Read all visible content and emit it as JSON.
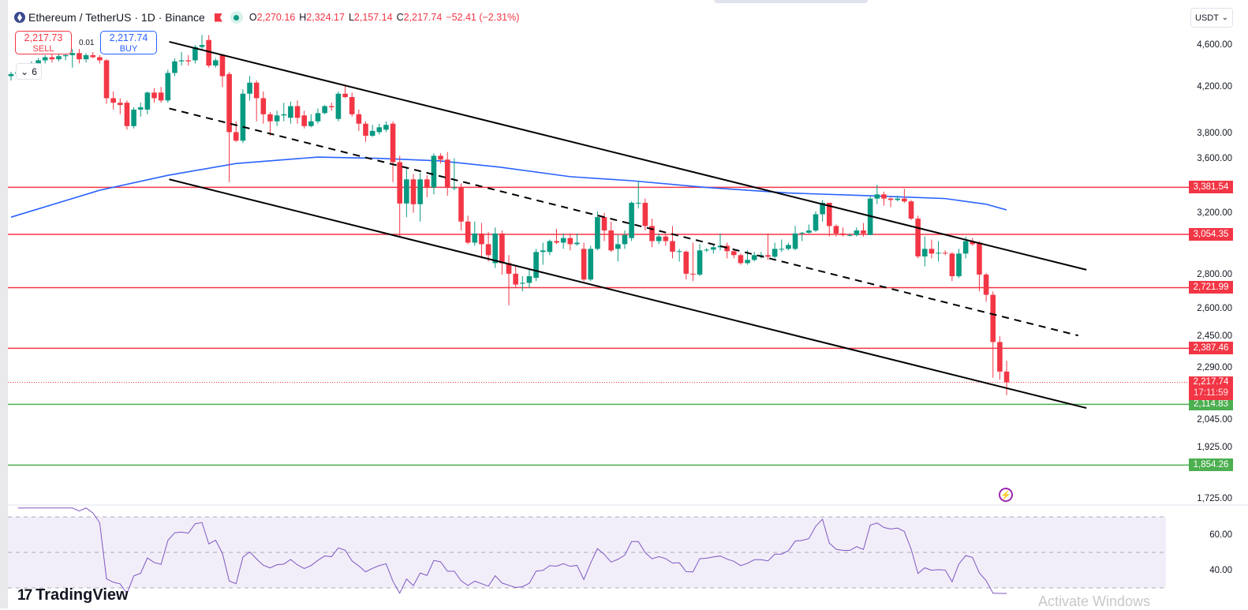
{
  "header": {
    "title": "Ethereum / TetherUS · 1D · Binance",
    "open_label": "O",
    "open": "2,270.16",
    "high_label": "H",
    "high": "2,324.17",
    "low_label": "L",
    "low": "2,157.14",
    "close_label": "C",
    "close": "2,217.74",
    "change": "−52.41 (−2.31%)"
  },
  "trade": {
    "sell_price": "2,217.73",
    "sell_label": "SELL",
    "buy_price": "2,217.74",
    "buy_label": "BUY",
    "spread": "0.01",
    "indicators_count": "6"
  },
  "currency_button": "USDT",
  "countdown": "17:11:59",
  "watermark": "Activate Windows",
  "logo_text": "TradingView",
  "colors": {
    "up": "#089981",
    "down": "#f23645",
    "ma": "#2962ff",
    "rsi": "#7e57c2",
    "support": "#4caf50",
    "resistance": "#f23645"
  },
  "icons": [
    "ethereum-logo-icon",
    "red-flag-icon",
    "market-open-dot-icon",
    "chevron-down-icon",
    "lightning-icon"
  ],
  "chart_data": {
    "type": "candlestick",
    "symbol": "ETHUSDT",
    "interval": "1D",
    "scale": "log",
    "ylim": [
      1700,
      4750
    ],
    "yticks": [
      "4,600.00",
      "4,200.00",
      "3,800.00",
      "3,600.00",
      "3,200.00",
      "2,800.00",
      "2,600.00",
      "2,450.00",
      "2,290.00",
      "2,045.00",
      "1,925.00",
      "1,725.00"
    ],
    "ytick_values": [
      4600,
      4200,
      3800,
      3600,
      3200,
      2800,
      2600,
      2450,
      2290,
      2045,
      1925,
      1725
    ],
    "current_price": {
      "value": 2217.74,
      "label": "2,217.74"
    },
    "levels": [
      {
        "value": 3381.54,
        "label": "3,381.54",
        "color": "#f23645"
      },
      {
        "value": 3054.35,
        "label": "3,054.35",
        "color": "#f23645"
      },
      {
        "value": 2721.99,
        "label": "2,721.99",
        "color": "#f23645"
      },
      {
        "value": 2387.46,
        "label": "2,387.46",
        "color": "#f23645"
      },
      {
        "value": 2114.83,
        "label": "2,114.83",
        "color": "#4caf50"
      },
      {
        "value": 1854.26,
        "label": "1,854.26",
        "color": "#4caf50"
      }
    ],
    "candles_ohlc": [
      [
        4300,
        4340,
        4260,
        4320
      ],
      [
        4320,
        4360,
        4290,
        4340
      ],
      [
        4330,
        4380,
        4300,
        4350
      ],
      [
        4350,
        4440,
        4330,
        4420
      ],
      [
        4420,
        4470,
        4390,
        4450
      ],
      [
        4450,
        4500,
        4420,
        4480
      ],
      [
        4480,
        4520,
        4430,
        4460
      ],
      [
        4460,
        4510,
        4440,
        4490
      ],
      [
        4490,
        4550,
        4450,
        4500
      ],
      [
        4500,
        4560,
        4380,
        4520
      ],
      [
        4520,
        4560,
        4420,
        4460
      ],
      [
        4460,
        4520,
        4430,
        4500
      ],
      [
        4500,
        4530,
        4470,
        4480
      ],
      [
        4480,
        4500,
        4420,
        4450
      ],
      [
        4450,
        4460,
        4050,
        4100
      ],
      [
        4100,
        4160,
        4000,
        4060
      ],
      [
        4060,
        4100,
        3960,
        4040
      ],
      [
        4060,
        4080,
        3830,
        3860
      ],
      [
        3860,
        4020,
        3840,
        4000
      ],
      [
        4000,
        4060,
        3940,
        4020
      ],
      [
        4000,
        4160,
        3960,
        4150
      ],
      [
        4150,
        4190,
        4060,
        4100
      ],
      [
        4150,
        4200,
        4060,
        4080
      ],
      [
        4080,
        4360,
        4060,
        4330
      ],
      [
        4330,
        4470,
        4300,
        4440
      ],
      [
        4440,
        4530,
        4400,
        4450
      ],
      [
        4450,
        4500,
        4400,
        4440
      ],
      [
        4450,
        4600,
        4420,
        4580
      ],
      [
        4580,
        4700,
        4560,
        4600
      ],
      [
        4650,
        4700,
        4380,
        4400
      ],
      [
        4400,
        4470,
        4380,
        4450
      ],
      [
        4500,
        4510,
        4200,
        4300
      ],
      [
        4320,
        4340,
        3420,
        3810
      ],
      [
        3810,
        3900,
        3730,
        3740
      ],
      [
        3740,
        4180,
        3720,
        4140
      ],
      [
        4140,
        4300,
        4080,
        4240
      ],
      [
        4240,
        4260,
        3900,
        4100
      ],
      [
        4100,
        4160,
        3880,
        3960
      ],
      [
        3960,
        3980,
        3780,
        3900
      ],
      [
        3900,
        3990,
        3860,
        3950
      ],
      [
        3950,
        4060,
        3900,
        3960
      ],
      [
        3930,
        4070,
        3880,
        4030
      ],
      [
        4030,
        4080,
        3880,
        3930
      ],
      [
        3950,
        3990,
        3840,
        3860
      ],
      [
        3860,
        3960,
        3850,
        3900
      ],
      [
        3900,
        4010,
        3880,
        3970
      ],
      [
        3970,
        4040,
        3960,
        4030
      ],
      [
        4030,
        4060,
        3990,
        4020
      ],
      [
        3920,
        4160,
        3900,
        4140
      ],
      [
        4140,
        4210,
        4100,
        4110
      ],
      [
        4110,
        4150,
        3940,
        3960
      ],
      [
        3960,
        4000,
        3820,
        3880
      ],
      [
        3880,
        3900,
        3730,
        3780
      ],
      [
        3780,
        3870,
        3770,
        3820
      ],
      [
        3810,
        3880,
        3790,
        3850
      ],
      [
        3830,
        3900,
        3810,
        3870
      ],
      [
        3880,
        3900,
        3420,
        3570
      ],
      [
        3570,
        3620,
        3040,
        3265
      ],
      [
        3265,
        3520,
        3170,
        3440
      ],
      [
        3440,
        3480,
        3200,
        3260
      ],
      [
        3260,
        3490,
        3140,
        3440
      ],
      [
        3440,
        3470,
        3310,
        3380
      ],
      [
        3380,
        3640,
        3330,
        3620
      ],
      [
        3620,
        3640,
        3560,
        3590
      ],
      [
        3590,
        3650,
        3320,
        3380
      ],
      [
        3380,
        3600,
        3360,
        3380
      ],
      [
        3380,
        3410,
        3080,
        3140
      ],
      [
        3140,
        3180,
        2990,
        3000
      ],
      [
        3000,
        3140,
        2980,
        3060
      ],
      [
        3060,
        3130,
        2900,
        2990
      ],
      [
        2990,
        3070,
        2880,
        2920
      ],
      [
        2870,
        3100,
        2840,
        3060
      ],
      [
        3060,
        3080,
        2800,
        2870
      ],
      [
        2870,
        2920,
        2620,
        2805
      ],
      [
        2805,
        2860,
        2720,
        2740
      ],
      [
        2745,
        2790,
        2700,
        2750
      ],
      [
        2750,
        2830,
        2720,
        2790
      ],
      [
        2780,
        2960,
        2760,
        2940
      ],
      [
        2940,
        3000,
        2860,
        2950
      ],
      [
        2940,
        3020,
        2920,
        3010
      ],
      [
        3010,
        3090,
        2990,
        3000
      ],
      [
        3000,
        3060,
        2960,
        3030
      ],
      [
        3030,
        3060,
        2950,
        2990
      ],
      [
        2990,
        3060,
        2980,
        3000
      ],
      [
        2960,
        3000,
        2760,
        2770
      ],
      [
        2770,
        2980,
        2760,
        2960
      ],
      [
        2960,
        3210,
        2950,
        3170
      ],
      [
        3170,
        3200,
        3010,
        3080
      ],
      [
        3080,
        3140,
        2940,
        2950
      ],
      [
        2960,
        3050,
        2880,
        2990
      ],
      [
        2990,
        3080,
        2960,
        3050
      ],
      [
        3030,
        3280,
        3010,
        3270
      ],
      [
        3270,
        3430,
        3230,
        3270
      ],
      [
        3270,
        3300,
        3080,
        3110
      ],
      [
        3110,
        3160,
        2970,
        3010
      ],
      [
        3010,
        3060,
        2990,
        3040
      ],
      [
        3040,
        3050,
        2980,
        3010
      ],
      [
        3010,
        3110,
        2900,
        2942
      ],
      [
        2942,
        2960,
        2880,
        2945
      ],
      [
        2942,
        2950,
        2770,
        2805
      ],
      [
        2805,
        3000,
        2760,
        2800
      ],
      [
        2800,
        2990,
        2790,
        2950
      ],
      [
        2950,
        2965,
        2940,
        2955
      ],
      [
        2955,
        2990,
        2930,
        2970
      ],
      [
        2970,
        3060,
        2950,
        2980
      ],
      [
        2980,
        3000,
        2900,
        2945
      ],
      [
        2945,
        2960,
        2900,
        2920
      ],
      [
        2920,
        2930,
        2860,
        2870
      ],
      [
        2870,
        2950,
        2860,
        2890
      ],
      [
        2890,
        2940,
        2880,
        2920
      ],
      [
        2915,
        2940,
        2900,
        2920
      ],
      [
        2920,
        3060,
        2890,
        2910
      ],
      [
        2910,
        3000,
        2900,
        2960
      ],
      [
        2960,
        3020,
        2940,
        2960
      ],
      [
        2960,
        3000,
        2950,
        2985
      ],
      [
        2960,
        3110,
        2950,
        3060
      ],
      [
        3060,
        3070,
        3010,
        3065
      ],
      [
        3065,
        3120,
        3060,
        3080
      ],
      [
        3080,
        3210,
        3070,
        3190
      ],
      [
        3190,
        3290,
        3140,
        3270
      ],
      [
        3270,
        3270,
        3040,
        3110
      ],
      [
        3110,
        3120,
        3040,
        3060
      ],
      [
        3060,
        3100,
        3040,
        3050
      ],
      [
        3050,
        3060,
        3040,
        3050
      ],
      [
        3050,
        3100,
        3040,
        3080
      ],
      [
        3080,
        3130,
        3040,
        3060
      ],
      [
        3050,
        3320,
        3050,
        3300
      ],
      [
        3300,
        3400,
        3260,
        3330
      ],
      [
        3330,
        3350,
        3250,
        3300
      ],
      [
        3300,
        3310,
        3240,
        3290
      ],
      [
        3290,
        3320,
        3280,
        3300
      ],
      [
        3300,
        3370,
        3270,
        3280
      ],
      [
        3280,
        3290,
        3150,
        3160
      ],
      [
        3160,
        3180,
        2900,
        2912
      ],
      [
        2912,
        3040,
        2850,
        2960
      ],
      [
        2960,
        3020,
        2900,
        2930
      ],
      [
        2930,
        3010,
        2880,
        2935
      ],
      [
        2935,
        2950,
        2920,
        2930
      ],
      [
        2930,
        2940,
        2760,
        2790
      ],
      [
        2790,
        2960,
        2780,
        2930
      ],
      [
        2930,
        3040,
        2900,
        3010
      ],
      [
        3010,
        3030,
        2980,
        2990
      ],
      [
        3000,
        3010,
        2700,
        2800
      ],
      [
        2800,
        2810,
        2640,
        2680
      ],
      [
        2680,
        2700,
        2240,
        2420
      ],
      [
        2420,
        2450,
        2230,
        2270
      ],
      [
        2270.16,
        2324.17,
        2157.14,
        2217.74
      ]
    ],
    "moving_average": [
      [
        0,
        3170
      ],
      [
        13,
        3360
      ],
      [
        23,
        3470
      ],
      [
        33,
        3560
      ],
      [
        45,
        3610
      ],
      [
        54,
        3600
      ],
      [
        63,
        3580
      ],
      [
        72,
        3530
      ],
      [
        82,
        3460
      ],
      [
        91,
        3430
      ],
      [
        102,
        3380
      ],
      [
        114,
        3340
      ],
      [
        126,
        3320
      ],
      [
        137,
        3300
      ],
      [
        143,
        3260
      ],
      [
        146,
        3220
      ]
    ],
    "trendlines": [
      {
        "style": "solid",
        "points": [
          [
            23.2,
            4632
          ],
          [
            157.7,
            2829
          ]
        ]
      },
      {
        "style": "dashed",
        "points": [
          [
            23.2,
            4010
          ],
          [
            156.5,
            2454
          ]
        ]
      },
      {
        "style": "solid",
        "points": [
          [
            23.2,
            3440
          ],
          [
            157.7,
            2098
          ]
        ]
      }
    ],
    "rsi": {
      "period": 14,
      "upper": 70,
      "middle": 50,
      "lower": 30,
      "ticks": [
        "60.00",
        "40.00"
      ],
      "tick_values": [
        60,
        40
      ]
    }
  }
}
